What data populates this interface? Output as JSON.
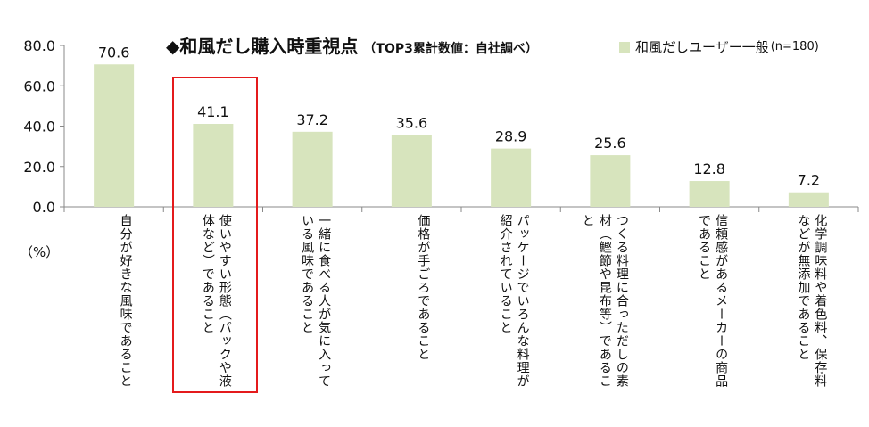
{
  "chart_data": {
    "type": "bar",
    "title": "◆和風だし購入時重視点",
    "subtitle": "（TOP3累計数値：自社調べ）",
    "unit_label": "（%）",
    "ylim": [
      0,
      80
    ],
    "yticks": [
      "80.0",
      "60.0",
      "40.0",
      "20.0",
      "0.0"
    ],
    "ytick_values": [
      80,
      60,
      40,
      20,
      0
    ],
    "legend": "和風だしユーザー一般",
    "legend_note": "(n=180)",
    "legend_position": "top-right",
    "grid": false,
    "bar_color": "#d7e4bd",
    "categories": [
      "自分が好きな風味であること",
      "使いやすい形態（パックや液体など）であること",
      "一緒に食べる人が気に入っている風味であること",
      "価格が手ごろであること",
      "パッケージでいろんな料理が紹介されていること",
      "つくる料理に合っただしの素材（鰹節や昆布等）であること",
      "信頼感があるメーカーの商品であること",
      "化学調味料や着色料、保存料などが無添加であること"
    ],
    "values": [
      70.6,
      41.1,
      37.2,
      35.6,
      28.9,
      25.6,
      12.8,
      7.2
    ],
    "value_labels": [
      "70.6",
      "41.1",
      "37.2",
      "35.6",
      "28.9",
      "25.6",
      "12.8",
      "7.2"
    ],
    "highlighted_category": "使いやすい形態（パックや液体など）であること",
    "highlight_color": "#e41a1c"
  }
}
